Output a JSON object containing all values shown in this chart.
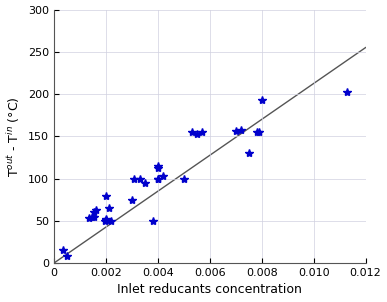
{
  "scatter_x": [
    0.00035,
    0.0005,
    0.00135,
    0.00145,
    0.00155,
    0.00155,
    0.0016,
    0.00195,
    0.002,
    0.002,
    0.0021,
    0.0022,
    0.002,
    0.003,
    0.0031,
    0.0033,
    0.0035,
    0.0038,
    0.004,
    0.004,
    0.004,
    0.004,
    0.0042,
    0.005,
    0.0053,
    0.0055,
    0.0057,
    0.007,
    0.0072,
    0.0075,
    0.0078,
    0.0079,
    0.008,
    0.0113
  ],
  "scatter_y": [
    15,
    8,
    53,
    55,
    55,
    60,
    63,
    50,
    51,
    52,
    65,
    50,
    79,
    75,
    100,
    100,
    95,
    50,
    100,
    100,
    113,
    115,
    103,
    100,
    155,
    153,
    155,
    156,
    157,
    130,
    155,
    155,
    193,
    203
  ],
  "line_x": [
    0,
    0.012
  ],
  "line_y": [
    0,
    255
  ],
  "scatter_color": "#0000cc",
  "line_color": "#555555",
  "marker": ".",
  "marker_size": 6,
  "xlabel": "Inlet reducants concentration",
  "ylabel": "T$^{out}$ - T$^{in}$ (°C)",
  "xlim": [
    0,
    0.012
  ],
  "ylim": [
    0,
    300
  ],
  "xticks": [
    0,
    0.002,
    0.004,
    0.006,
    0.008,
    0.01,
    0.012
  ],
  "yticks": [
    0,
    50,
    100,
    150,
    200,
    250,
    300
  ],
  "grid": true,
  "grid_color": "#d0d0e0",
  "grid_linestyle": "-",
  "grid_linewidth": 0.5,
  "tick_fontsize": 8,
  "label_fontsize": 9,
  "fig_width": 3.87,
  "fig_height": 3.02,
  "dpi": 100,
  "bg_color": "#f8f8f8"
}
